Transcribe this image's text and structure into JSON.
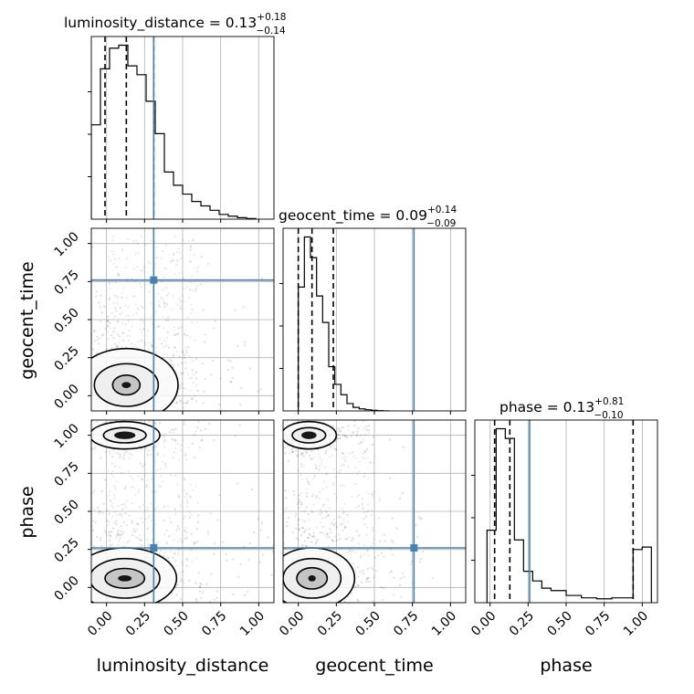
{
  "chart_data": {
    "type": "corner",
    "grid": true,
    "parameters": [
      "luminosity_distance",
      "geocent_time",
      "phase"
    ],
    "axis_labels": [
      "luminosity_distance",
      "geocent_time",
      "phase"
    ],
    "tick_labels": [
      "0.00",
      "0.25",
      "0.50",
      "0.75",
      "1.00"
    ],
    "range": [
      -0.1,
      1.1
    ],
    "truths": [
      0.31,
      0.76,
      0.26
    ],
    "truth_color": "#4682b4",
    "titles": [
      {
        "text": "luminosity_distance = 0.13",
        "plus": "+0.18",
        "minus": "−0.14"
      },
      {
        "text": "geocent_time = 0.09",
        "plus": "+0.14",
        "minus": "−0.09"
      },
      {
        "text": "phase = 0.13",
        "plus": "+0.81",
        "minus": "−0.10"
      }
    ],
    "quantiles": [
      [
        -0.01,
        0.13,
        0.31
      ],
      [
        0.0,
        0.09,
        0.23
      ],
      [
        0.03,
        0.13,
        0.94
      ]
    ],
    "histograms": [
      {
        "edges": [
          -0.1,
          -0.04,
          0.02,
          0.08,
          0.14,
          0.2,
          0.26,
          0.32,
          0.38,
          0.44,
          0.5,
          0.56,
          0.62,
          0.68,
          0.74,
          0.8,
          0.86,
          0.92,
          0.98
        ],
        "counts": [
          320,
          510,
          580,
          590,
          520,
          490,
          400,
          290,
          160,
          115,
          85,
          60,
          45,
          30,
          16,
          10,
          5,
          2
        ]
      },
      {
        "edges": [
          0.0,
          0.04,
          0.08,
          0.12,
          0.16,
          0.2,
          0.24,
          0.28,
          0.32,
          0.36,
          0.4,
          0.44,
          0.48,
          0.52,
          0.56,
          0.6
        ],
        "counts": [
          420,
          590,
          520,
          390,
          300,
          150,
          90,
          55,
          25,
          12,
          7,
          4,
          2,
          1,
          0
        ]
      },
      {
        "edges": [
          -0.02,
          0.04,
          0.1,
          0.16,
          0.22,
          0.28,
          0.34,
          0.4,
          0.5,
          0.6,
          0.7,
          0.8,
          0.94,
          1.0,
          1.06
        ],
        "counts": [
          150,
          360,
          340,
          130,
          65,
          45,
          30,
          25,
          15,
          10,
          8,
          10,
          110,
          115
        ]
      }
    ],
    "contours": [
      {
        "x": 0,
        "y": 1,
        "blobs": [
          {
            "cx": 0.13,
            "cy": 0.07,
            "levels": [
              [
                0.03,
                0.02
              ],
              [
                0.09,
                0.065
              ],
              [
                0.21,
                0.14
              ],
              [
                0.34,
                0.24
              ]
            ]
          }
        ]
      },
      {
        "x": 0,
        "y": 2,
        "blobs": [
          {
            "cx": 0.12,
            "cy": 0.06,
            "levels": [
              [
                0.045,
                0.02
              ],
              [
                0.13,
                0.065
              ],
              [
                0.23,
                0.13
              ],
              [
                0.34,
                0.2
              ]
            ]
          },
          {
            "cx": 0.12,
            "cy": 1.0,
            "levels": [
              [
                0.07,
                0.025
              ],
              [
                0.14,
                0.05
              ],
              [
                0.23,
                0.09
              ]
            ]
          }
        ]
      },
      {
        "x": 1,
        "y": 2,
        "blobs": [
          {
            "cx": 0.09,
            "cy": 0.06,
            "levels": [
              [
                0.025,
                0.02
              ],
              [
                0.1,
                0.07
              ],
              [
                0.19,
                0.13
              ],
              [
                0.28,
                0.2
              ]
            ]
          },
          {
            "cx": 0.07,
            "cy": 1.0,
            "levels": [
              [
                0.05,
                0.025
              ],
              [
                0.11,
                0.05
              ],
              [
                0.18,
                0.09
              ]
            ]
          }
        ]
      }
    ]
  }
}
